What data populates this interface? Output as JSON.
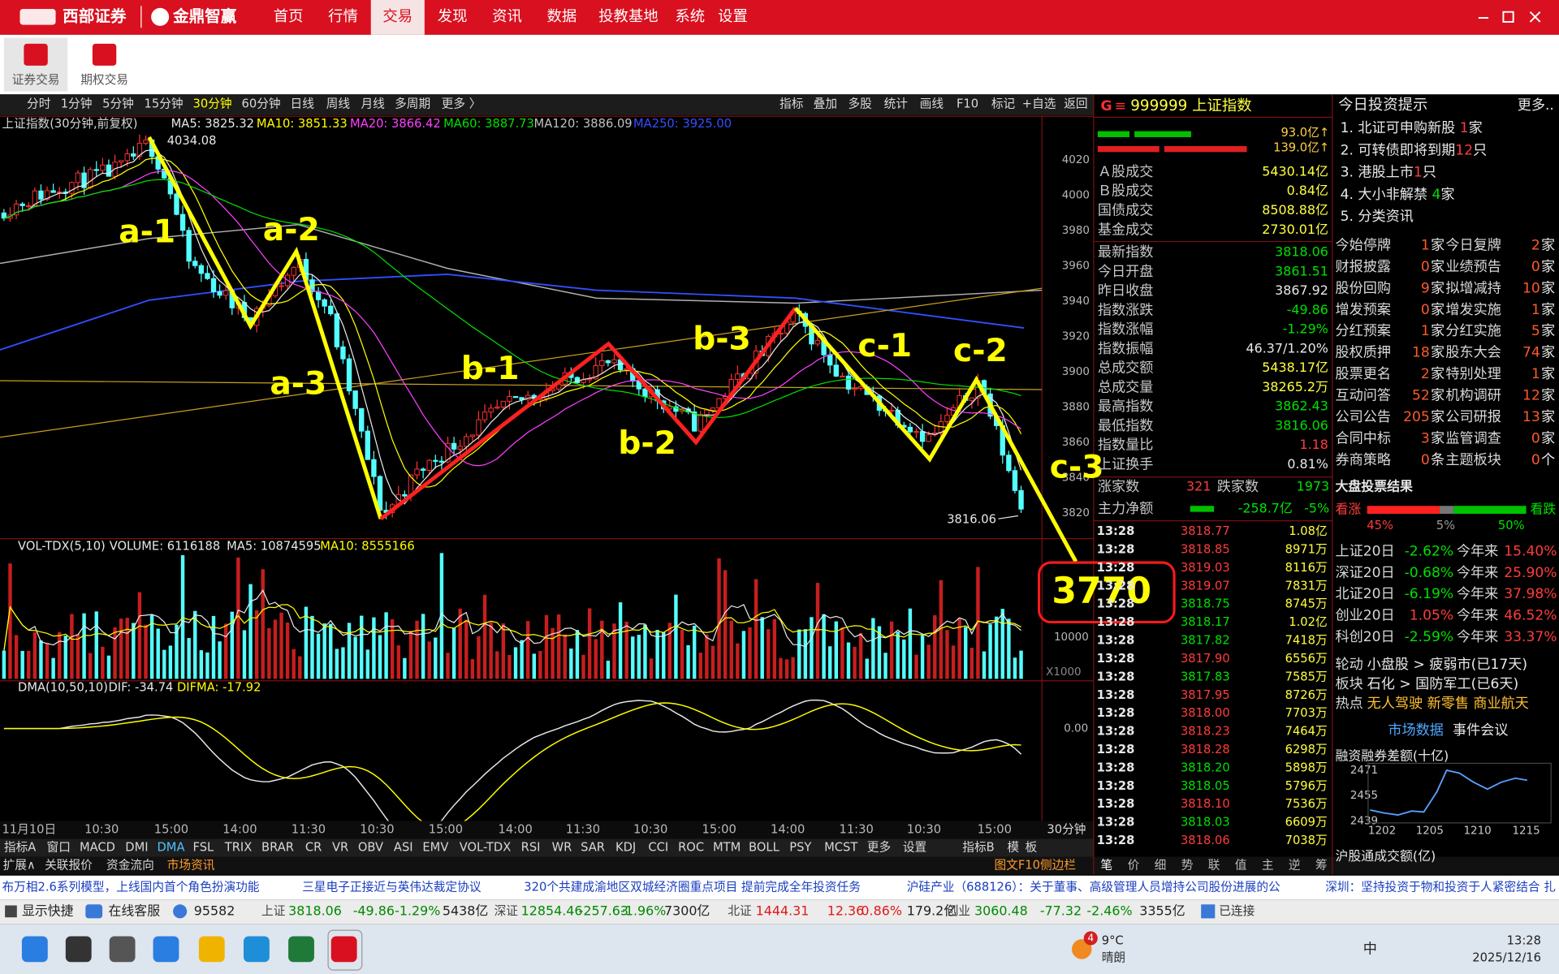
{
  "menu": {
    "brand": [
      "西部证券",
      "金鼎智赢"
    ],
    "items": [
      "首页",
      "行情",
      "交易",
      "发现",
      "资讯",
      "数据",
      "投教基地",
      "系统",
      "设置"
    ],
    "active": 2
  },
  "toolbar": [
    "证券交易",
    "期权交易"
  ],
  "periods": {
    "items": [
      "分时",
      "1分钟",
      "5分钟",
      "15分钟",
      "30分钟",
      "60分钟",
      "日线",
      "周线",
      "月线",
      "多周期",
      "更多 〉"
    ],
    "active": 4
  },
  "tools": [
    "指标",
    "叠加",
    "多股",
    "统计",
    "画线",
    "F10",
    "标记",
    "+自选",
    "返回"
  ],
  "main": {
    "title": "上证指数(30分钟,前复权)",
    "ma": [
      {
        "label": "MA5: 3825.32",
        "color": "#e8e8e8"
      },
      {
        "label": "MA10: 3851.33",
        "color": "#ffff00"
      },
      {
        "label": "MA20: 3866.42",
        "color": "#ff40ff"
      },
      {
        "label": "MA60: 3887.73",
        "color": "#00e000"
      },
      {
        "label": "MA120: 3886.09",
        "color": "#c0c0c0"
      },
      {
        "label": "MA250: 3925.00",
        "color": "#3050ff"
      }
    ],
    "axis": [
      "4020",
      "4000",
      "3980",
      "3960",
      "3940",
      "3920",
      "3900",
      "3880",
      "3860",
      "3840",
      "3820"
    ],
    "high": "4034.08",
    "low": "3816.06",
    "waves": [
      "a-1",
      "a-2",
      "a-3",
      "b-1",
      "b-2",
      "b-3",
      "c-1",
      "c-2",
      "c-3"
    ],
    "target": "3770"
  },
  "volume": {
    "legend": [
      {
        "label": "VOL-TDX(5,10)",
        "color": "#e8e8e8"
      },
      {
        "label": "VOLUME: 6116188",
        "color": "#e8e8e8"
      },
      {
        "label": "MA5: 10874595",
        "color": "#e8e8e8"
      },
      {
        "label": "MA10: 8555166",
        "color": "#ffff00"
      }
    ],
    "axis": [
      "10000"
    ],
    "unit": "X1000"
  },
  "dma": {
    "legend": [
      {
        "label": "DMA(10,50,10)",
        "color": "#e8e8e8"
      },
      {
        "label": "DIF: -34.74",
        "color": "#e8e8e8"
      },
      {
        "label": "DIFMA: -17.92",
        "color": "#ffff00"
      }
    ],
    "axis": [
      "0.00"
    ]
  },
  "xaxis": {
    "labels": [
      "11月10日",
      "10:30",
      "15:00",
      "14:00",
      "11:30",
      "10:30",
      "15:00",
      "14:00",
      "11:30",
      "10:30",
      "15:00",
      "14:00",
      "11:30",
      "10:30",
      "15:00"
    ],
    "period": "30分钟"
  },
  "indicator_tabs": {
    "items": [
      "指标A",
      "窗口",
      "MACD",
      "DMI",
      "DMA",
      "FSL",
      "TRIX",
      "BRAR",
      "CR",
      "VR",
      "OBV",
      "ASI",
      "EMV",
      "VOL-TDX",
      "RSI",
      "WR",
      "SAR",
      "KDJ",
      "CCI",
      "ROC",
      "MTM",
      "BOLL",
      "PSY",
      "MCST",
      "更多",
      "设置"
    ],
    "active": 4,
    "right": [
      "指标B",
      "模",
      "板"
    ]
  },
  "info_tabs": {
    "items": [
      "扩展∧",
      "关联报价",
      "资金流向",
      "市场资讯"
    ],
    "active": 3,
    "sidebar": "图文F10侧边栏"
  },
  "news": [
    "布万相2.6系列模型，上线国内首个角色扮演功能",
    "三星电子正接近与英伟达裁定协议",
    "320个共建成渝地区双城经济圈重点项目  提前完成全年投资任务",
    "沪硅产业（688126）：关于董事、高级管理人员增持公司股份进展的公",
    "深圳：坚持投资于物和投资于人紧密结合 扎"
  ],
  "quote": {
    "flag": "G",
    "menu": "≡",
    "name": "999999 上证指数",
    "flows": [
      "93.0亿↑",
      "139.0亿↑"
    ],
    "turnover": [
      {
        "label": "Ａ股成交",
        "value": "5430.14亿"
      },
      {
        "label": "Ｂ股成交",
        "value": "0.84亿"
      },
      {
        "label": "国债成交",
        "value": "8508.88亿"
      },
      {
        "label": "基金成交",
        "value": "2730.01亿"
      }
    ],
    "rows": [
      {
        "label": "最新指数",
        "value": "3818.06",
        "color": "#00e000"
      },
      {
        "label": "今日开盘",
        "value": "3861.51",
        "color": "#00e000"
      },
      {
        "label": "昨日收盘",
        "value": "3867.92",
        "color": "#e8e8e8"
      },
      {
        "label": "指数涨跌",
        "value": "-49.86",
        "color": "#00e000"
      },
      {
        "label": "指数涨幅",
        "value": "-1.29%",
        "color": "#00e000"
      },
      {
        "label": "指数振幅",
        "value": "46.37/1.20%",
        "color": "#e8e8e8"
      },
      {
        "label": "总成交额",
        "value": "5438.17亿",
        "color": "#ffff40"
      },
      {
        "label": "总成交量",
        "value": "38265.2万",
        "color": "#ffff40"
      },
      {
        "label": "最高指数",
        "value": "3862.43",
        "color": "#00e000"
      },
      {
        "label": "最低指数",
        "value": "3816.06",
        "color": "#00e000"
      },
      {
        "label": "指数量比",
        "value": "1.18",
        "color": "#ff3c3c"
      },
      {
        "label": "上证换手",
        "value": "0.81%",
        "color": "#e8e8e8"
      }
    ],
    "breadth": {
      "up_label": "涨家数",
      "up": "321",
      "down_label": "跌家数",
      "down": "1973"
    },
    "net": {
      "label": "主力净额",
      "value": "-258.7亿",
      "pct": "-5%"
    },
    "ticks": [
      {
        "time": "13:28",
        "price": "3818.77",
        "vol": "1.08亿"
      },
      {
        "time": "13:28",
        "price": "3818.85",
        "vol": "8971万"
      },
      {
        "time": "13:28",
        "price": "3819.03",
        "vol": "8116万"
      },
      {
        "time": "13:28",
        "price": "3819.07",
        "vol": "7831万"
      },
      {
        "time": "13:28",
        "price": "3818.75",
        "vol": "8745万"
      },
      {
        "time": "13:28",
        "price": "3818.17",
        "vol": "1.02亿"
      },
      {
        "time": "13:28",
        "price": "3817.82",
        "vol": "7418万"
      },
      {
        "time": "13:28",
        "price": "3817.90",
        "vol": "6556万"
      },
      {
        "time": "13:28",
        "price": "3817.83",
        "vol": "7585万"
      },
      {
        "time": "13:28",
        "price": "3817.95",
        "vol": "8726万"
      },
      {
        "time": "13:28",
        "price": "3818.00",
        "vol": "7703万"
      },
      {
        "time": "13:28",
        "price": "3818.23",
        "vol": "7464万"
      },
      {
        "time": "13:28",
        "price": "3818.28",
        "vol": "6298万"
      },
      {
        "time": "13:28",
        "price": "3818.20",
        "vol": "5898万"
      },
      {
        "time": "13:28",
        "price": "3818.05",
        "vol": "5796万"
      },
      {
        "time": "13:28",
        "price": "3818.10",
        "vol": "7536万"
      },
      {
        "time": "13:28",
        "price": "3818.03",
        "vol": "6609万"
      },
      {
        "time": "13:28",
        "price": "3818.06",
        "vol": "7038万"
      }
    ],
    "tabs": [
      "笔",
      "价",
      "细",
      "势",
      "联",
      "值",
      "主",
      "逆",
      "筹"
    ]
  },
  "tips": {
    "title": "今日投资提示",
    "more": "更多..",
    "items": [
      {
        "label": "1. 北证可申购新股 ",
        "count": "1",
        "unit": "家"
      },
      {
        "label": "2. 可转债即将到期",
        "count": "12",
        "unit": "只"
      },
      {
        "label": "3. 港股上市",
        "count": "1",
        "unit": "只"
      },
      {
        "label": "4. 大小非解禁 ",
        "count": "4",
        "unit": "家"
      },
      {
        "label": "5. 分类资讯"
      }
    ],
    "stats": [
      {
        "label": "今始停牌",
        "count": "1",
        "unit": "家"
      },
      {
        "label": "今日复牌",
        "count": "2",
        "unit": "家"
      },
      {
        "label": "财报披露",
        "count": "0",
        "unit": "家"
      },
      {
        "label": "业绩预告",
        "count": "0",
        "unit": "家"
      },
      {
        "label": "股份回购",
        "count": "9",
        "unit": "家"
      },
      {
        "label": "拟增减持",
        "count": "10",
        "unit": "家"
      },
      {
        "label": "增发预案",
        "count": "0",
        "unit": "家"
      },
      {
        "label": "增发实施",
        "count": "1",
        "unit": "家"
      },
      {
        "label": "分红预案",
        "count": "1",
        "unit": "家"
      },
      {
        "label": "分红实施",
        "count": "5",
        "unit": "家"
      },
      {
        "label": "股权质押",
        "count": "18",
        "unit": "家"
      },
      {
        "label": "股东大会",
        "count": "74",
        "unit": "家"
      },
      {
        "label": "股票更名",
        "count": "2",
        "unit": "家"
      },
      {
        "label": "特别处理",
        "count": "1",
        "unit": "家"
      },
      {
        "label": "互动问答",
        "count": "52",
        "unit": "家"
      },
      {
        "label": "机构调研",
        "count": "12",
        "unit": "家"
      },
      {
        "label": "公司公告",
        "count": "205",
        "unit": "家"
      },
      {
        "label": "公司研报",
        "count": "13",
        "unit": "家"
      },
      {
        "label": "合同中标",
        "count": "3",
        "unit": "家"
      },
      {
        "label": "监管调查",
        "count": "0",
        "unit": "家"
      },
      {
        "label": "券商策略",
        "count": "0",
        "unit": "条"
      },
      {
        "label": "主题板块",
        "count": "0",
        "unit": "个"
      }
    ],
    "vote": {
      "title": "大盘投票结果",
      "bull": "看涨",
      "bear": "看跌",
      "pcts": [
        "45%",
        "5%",
        "50%"
      ]
    },
    "indices": [
      {
        "name": "上证20日",
        "d20": "-2.62%",
        "ytd_label": "今年来",
        "ytd": "15.40%"
      },
      {
        "name": "深证20日",
        "d20": "-0.68%",
        "ytd_label": "今年来",
        "ytd": "25.90%"
      },
      {
        "name": "北证20日",
        "d20": "-6.19%",
        "ytd_label": "今年来",
        "ytd": "37.98%"
      },
      {
        "name": "创业20日",
        "d20": "1.05%",
        "ytd_label": "今年来",
        "ytd": "46.52%"
      },
      {
        "name": "科创20日",
        "d20": "-2.59%",
        "ytd_label": "今年来",
        "ytd": "33.37%"
      }
    ],
    "rotation": [
      {
        "key": "轮动",
        "value": "小盘股 > 疲弱市(已17天)"
      },
      {
        "key": "板块",
        "value": "石化 > 国防军工(已6天)"
      },
      {
        "key": "热点",
        "value": "无人驾驶 新零售 商业航天"
      }
    ],
    "links": [
      "市场数据",
      "事件会议"
    ],
    "margin": {
      "title": "融资融券差额(十亿)",
      "yaxis": [
        "2471",
        "2455",
        "2439"
      ],
      "xaxis": [
        "1202",
        "1205",
        "1210",
        "1215"
      ]
    },
    "hk": "沪股通成交额(亿)"
  },
  "status": {
    "quick": [
      "显示快捷",
      "在线客服",
      "95582"
    ],
    "indices": [
      {
        "name": "上证",
        "price": "3818.06",
        "chg": "-49.86",
        "pct": "-1.29%",
        "amt": "5438亿"
      },
      {
        "name": "深证",
        "price": "12854.46",
        "chg": "-257.63",
        "pct": "-1.96%",
        "amt": "7300亿"
      },
      {
        "name": "北证",
        "price": "1444.31",
        "chg": "12.36",
        "pct": "0.86%",
        "amt": "179.2亿"
      },
      {
        "name": "创业",
        "price": "3060.48",
        "chg": "-77.32",
        "pct": "-2.46%",
        "amt": "3355亿"
      }
    ],
    "connected": "已连接"
  },
  "taskbar": {
    "badge": "4",
    "temp": "9°C",
    "weather": "晴朗",
    "ime": "中",
    "time": "13:28",
    "date": "2025/12/16"
  }
}
